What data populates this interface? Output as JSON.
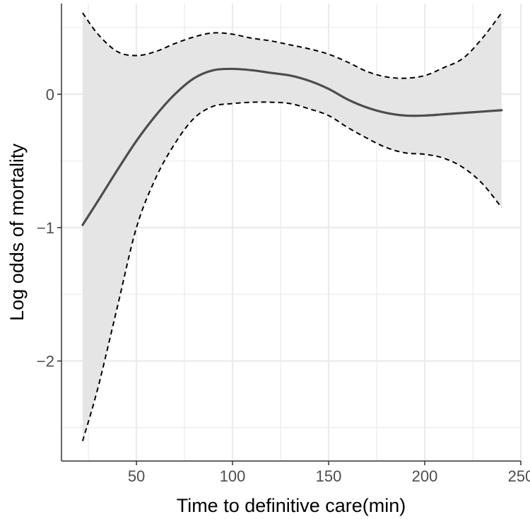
{
  "chart_data": {
    "type": "line",
    "title": "",
    "xlabel": "Time to definitive care(min)",
    "ylabel": "Log odds of mortality",
    "xlim": [
      11,
      250
    ],
    "ylim": [
      -2.75,
      0.68
    ],
    "x_ticks": [
      50,
      100,
      150,
      200,
      250
    ],
    "x_tick_labels": [
      "50",
      "100",
      "150",
      "200",
      "250"
    ],
    "y_ticks": [
      -2,
      -1,
      0
    ],
    "y_tick_labels": [
      "−2",
      "−1",
      "0"
    ],
    "grid": true,
    "legend": "none",
    "colors": {
      "panel_background": "#ffffff",
      "grid": "#ebebeb",
      "band_fill": "#e5e5e5",
      "fit_line": "#4d4d4d",
      "ci_lines": "#000000",
      "axis": "#333333"
    },
    "series": [
      {
        "role": "fit",
        "style": "solid",
        "x": [
          22,
          30,
          40,
          50,
          60,
          70,
          80,
          90,
          100,
          110,
          120,
          130,
          140,
          150,
          160,
          170,
          180,
          190,
          200,
          210,
          220,
          230,
          240
        ],
        "y": [
          -0.98,
          -0.8,
          -0.57,
          -0.35,
          -0.16,
          0.0,
          0.12,
          0.18,
          0.19,
          0.18,
          0.16,
          0.14,
          0.1,
          0.04,
          -0.04,
          -0.1,
          -0.14,
          -0.16,
          -0.16,
          -0.15,
          -0.14,
          -0.13,
          -0.12
        ]
      },
      {
        "role": "upper_ci",
        "style": "dashed",
        "x": [
          22,
          30,
          40,
          50,
          60,
          70,
          80,
          90,
          100,
          110,
          120,
          130,
          140,
          150,
          160,
          170,
          180,
          190,
          200,
          210,
          220,
          230,
          240
        ],
        "y": [
          0.61,
          0.45,
          0.32,
          0.29,
          0.32,
          0.38,
          0.43,
          0.46,
          0.45,
          0.42,
          0.4,
          0.37,
          0.34,
          0.3,
          0.24,
          0.17,
          0.13,
          0.12,
          0.14,
          0.2,
          0.27,
          0.42,
          0.61
        ]
      },
      {
        "role": "lower_ci",
        "style": "dashed",
        "x": [
          22,
          30,
          40,
          50,
          60,
          70,
          80,
          90,
          100,
          110,
          120,
          130,
          140,
          150,
          160,
          170,
          180,
          190,
          200,
          210,
          220,
          230,
          240
        ],
        "y": [
          -2.6,
          -2.2,
          -1.6,
          -1.0,
          -0.63,
          -0.37,
          -0.18,
          -0.09,
          -0.07,
          -0.06,
          -0.06,
          -0.07,
          -0.11,
          -0.16,
          -0.25,
          -0.33,
          -0.4,
          -0.44,
          -0.45,
          -0.48,
          -0.55,
          -0.67,
          -0.85
        ]
      }
    ]
  }
}
